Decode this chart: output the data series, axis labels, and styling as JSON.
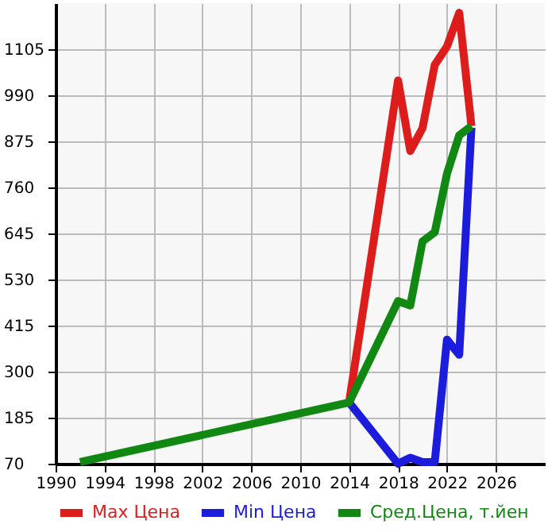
{
  "chart_data": {
    "type": "line",
    "x": [
      1992,
      2014,
      2018,
      2019,
      2020,
      2021,
      2022,
      2023,
      2024
    ],
    "series": [
      {
        "name": "Max Цена",
        "color": "#dd1c1c",
        "values": [
          null,
          223,
          1027,
          851,
          908,
          1066,
          1112,
          1196,
          913
        ]
      },
      {
        "name": "Min Цена",
        "color": "#1c1cdd",
        "values": [
          null,
          223,
          70,
          85,
          74,
          74,
          380,
          342,
          909
        ]
      },
      {
        "name": "Сред.Цена, т.йен",
        "color": "#118811",
        "values": [
          74,
          223,
          476,
          465,
          625,
          648,
          794,
          890,
          913
        ]
      }
    ],
    "xlim": [
      1990,
      2030
    ],
    "xticks": [
      1990,
      1994,
      1998,
      2002,
      2006,
      2010,
      2014,
      2018,
      2022,
      2026
    ],
    "ylim": [
      70,
      1220
    ],
    "yticks": [
      70,
      185,
      300,
      415,
      530,
      645,
      760,
      875,
      990,
      1105
    ],
    "grid": true,
    "legend": "bottom",
    "marker": "none",
    "line_style": "solid"
  }
}
